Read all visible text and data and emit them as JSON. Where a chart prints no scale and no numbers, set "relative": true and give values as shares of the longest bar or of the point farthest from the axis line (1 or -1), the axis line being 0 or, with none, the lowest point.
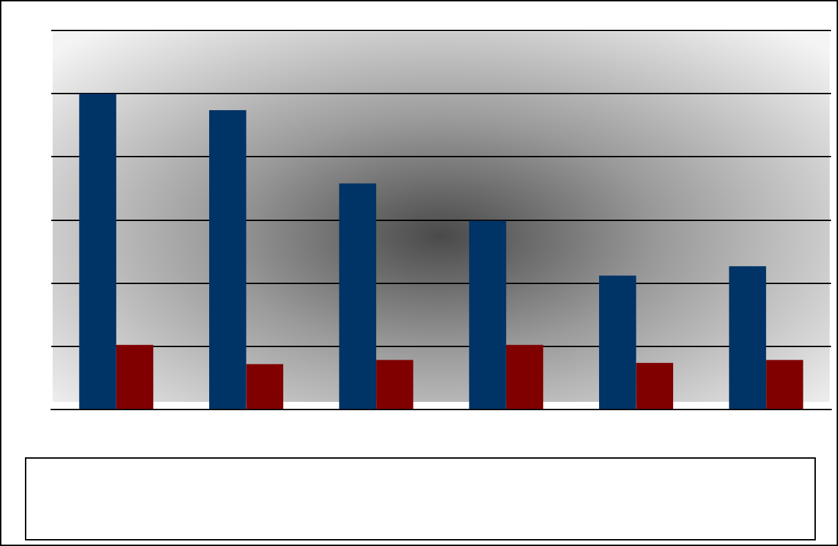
{
  "chart_data": {
    "type": "bar",
    "relative": true,
    "grid": "y",
    "categories": [
      null,
      null,
      null,
      null,
      null,
      null
    ],
    "series": [
      {
        "color": "#003366",
        "values": [
          1,
          0.948,
          0.716,
          0.598,
          0.424,
          0.454
        ]
      },
      {
        "color": "#800000",
        "values": [
          0.205,
          0.144,
          0.157,
          0.205,
          0.148,
          0.157
        ]
      }
    ]
  }
}
